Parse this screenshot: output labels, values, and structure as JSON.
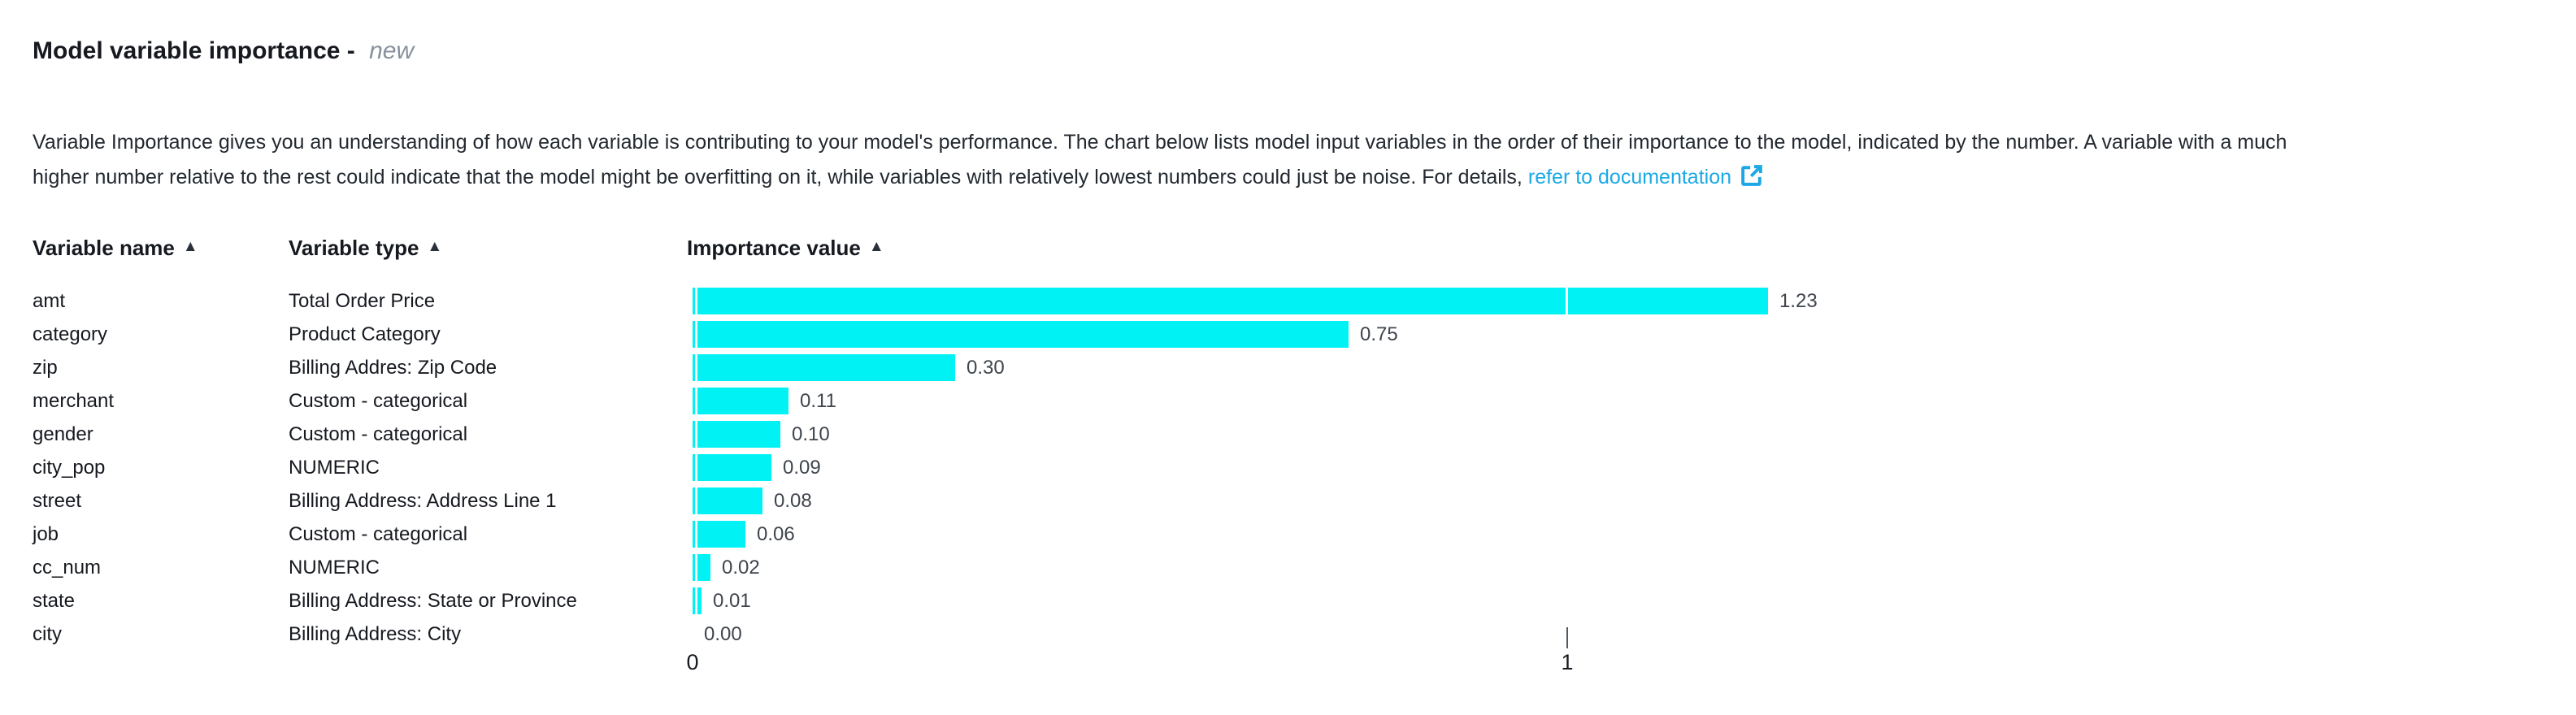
{
  "header": {
    "title": "Model variable importance -",
    "badge": "new"
  },
  "description": {
    "line1": "Variable Importance gives you an understanding of how each variable is contributing to your model's performance. The chart below lists model input variables in the order of their importance to the model, indicated by the number. A variable with a much",
    "line2_prefix": "higher number relative to the rest could indicate that the model might be overfitting on it, while variables with relatively lowest numbers could just be noise. For details,",
    "link_text": "refer to documentation",
    "link_icon": "external-link"
  },
  "table": {
    "columns": [
      {
        "label": "Variable name",
        "sort_icon": "▲",
        "sort": "ascending"
      },
      {
        "label": "Variable type",
        "sort_icon": "▲",
        "sort": "ascending"
      },
      {
        "label": "Importance value",
        "sort_icon": "▲",
        "sort": "ascending"
      }
    ]
  },
  "chart_data": {
    "type": "bar",
    "orientation": "horizontal",
    "title": "Model variable importance",
    "xlabel": "",
    "ylabel": "",
    "xlim": [
      0,
      1.35
    ],
    "grid": false,
    "bar_color": "#00F2F4",
    "rows": [
      {
        "name": "amt",
        "type": "Total Order Price",
        "value": 1.23,
        "label": "1.23"
      },
      {
        "name": "category",
        "type": "Product Category",
        "value": 0.75,
        "label": "0.75"
      },
      {
        "name": "zip",
        "type": "Billing Addres: Zip Code",
        "value": 0.3,
        "label": "0.30"
      },
      {
        "name": "merchant",
        "type": "Custom - categorical",
        "value": 0.11,
        "label": "0.11"
      },
      {
        "name": "gender",
        "type": "Custom - categorical",
        "value": 0.1,
        "label": "0.10"
      },
      {
        "name": "city_pop",
        "type": "NUMERIC",
        "value": 0.09,
        "label": "0.09"
      },
      {
        "name": "street",
        "type": "Billing Address: Address Line 1",
        "value": 0.08,
        "label": "0.08"
      },
      {
        "name": "job",
        "type": "Custom - categorical",
        "value": 0.06,
        "label": "0.06"
      },
      {
        "name": "cc_num",
        "type": "NUMERIC",
        "value": 0.02,
        "label": "0.02"
      },
      {
        "name": "state",
        "type": "Billing Address: State or Province",
        "value": 0.01,
        "label": "0.01"
      },
      {
        "name": "city",
        "type": "Billing Address: City",
        "value": 0.0,
        "label": "0.00"
      }
    ],
    "x_ticks": [
      {
        "label": "0",
        "value": 0,
        "tick_mark": false
      },
      {
        "label": "1",
        "value": 1,
        "tick_mark": true
      }
    ]
  },
  "colors": {
    "bar": "#00F2F4",
    "link": "#1BA9E6",
    "text": "#16191f",
    "badge_text": "#87919c"
  }
}
